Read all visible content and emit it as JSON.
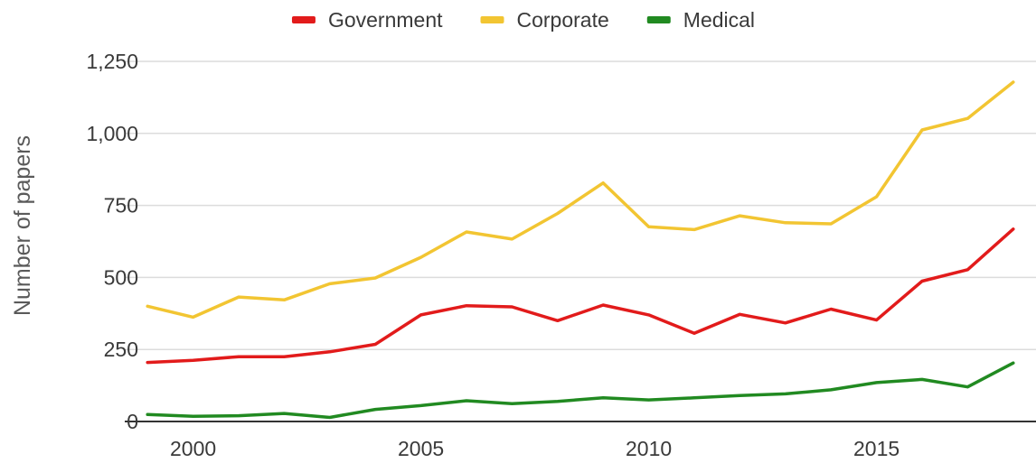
{
  "chart_data": {
    "type": "line",
    "title": "",
    "xlabel": "",
    "ylabel": "Number of papers",
    "x": [
      1999,
      2000,
      2001,
      2002,
      2003,
      2004,
      2005,
      2006,
      2007,
      2008,
      2009,
      2010,
      2011,
      2012,
      2013,
      2014,
      2015,
      2016,
      2017,
      2018
    ],
    "x_ticks": [
      "2000",
      "2005",
      "2010",
      "2015"
    ],
    "xlim": [
      1998.5,
      2018.5
    ],
    "y_ticks": [
      "0",
      "250",
      "500",
      "750",
      "1,000",
      "1,250"
    ],
    "ylim": [
      0,
      1250
    ],
    "grid": true,
    "legend_position": "top-center",
    "series": [
      {
        "name": "Government",
        "color": "#e21b1b",
        "values": [
          205,
          212,
          225,
          225,
          242,
          268,
          370,
          402,
          398,
          350,
          404,
          370,
          306,
          372,
          342,
          390,
          352,
          487,
          527,
          668
        ]
      },
      {
        "name": "Corporate",
        "color": "#f2c532",
        "values": [
          400,
          362,
          432,
          422,
          478,
          498,
          570,
          658,
          633,
          722,
          828,
          676,
          666,
          714,
          690,
          686,
          780,
          1012,
          1052,
          1178
        ]
      },
      {
        "name": "Medical",
        "color": "#218a21",
        "values": [
          24,
          18,
          20,
          28,
          14,
          42,
          55,
          72,
          62,
          70,
          82,
          75,
          82,
          90,
          96,
          110,
          135,
          146,
          120,
          203
        ]
      }
    ]
  }
}
